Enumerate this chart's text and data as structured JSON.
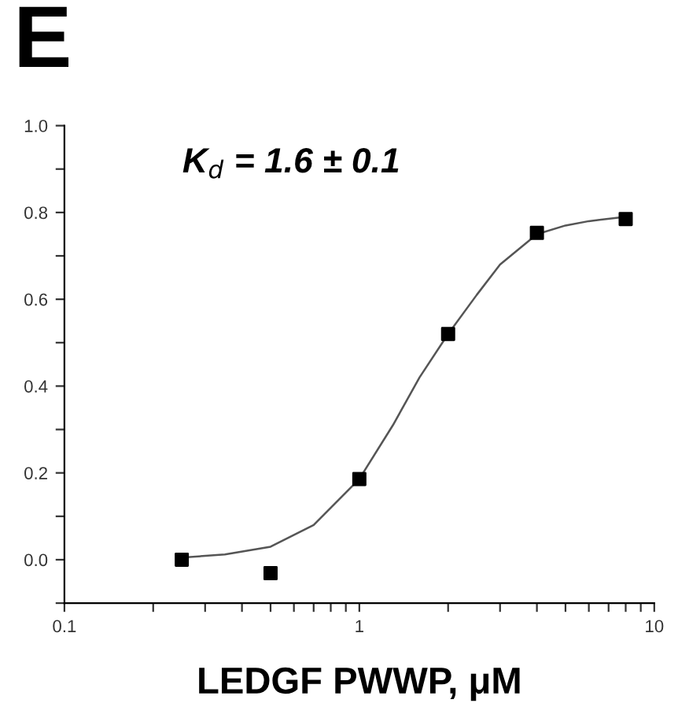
{
  "chart_data": {
    "type": "scatter",
    "xlabel": "LEDGF PWWP, μM",
    "annotations": [
      "E",
      "K$_{d}$ = 1.6 ± 0.1"
    ],
    "log": "x",
    "xlim": [
      0.1,
      10
    ],
    "ylim": [
      -0.1,
      1.0
    ],
    "xticks": [
      0.1,
      {
        "value": 0.2,
        "label": null
      },
      {
        "value": 0.3,
        "label": null
      },
      {
        "value": 0.4,
        "label": null
      },
      {
        "value": 0.5,
        "label": null
      },
      {
        "value": 0.6,
        "label": null
      },
      {
        "value": 0.7,
        "label": null
      },
      {
        "value": 0.8,
        "label": null
      },
      {
        "value": 0.9,
        "label": null
      },
      1,
      {
        "value": 2,
        "label": null
      },
      {
        "value": 3,
        "label": null
      },
      {
        "value": 4,
        "label": null
      },
      {
        "value": 5,
        "label": null
      },
      {
        "value": 6,
        "label": null
      },
      {
        "value": 7,
        "label": null
      },
      {
        "value": 8,
        "label": null
      },
      {
        "value": 9,
        "label": null
      },
      10
    ],
    "yticks": [
      {
        "value": -0.1,
        "label": null
      },
      {
        "value": 0.0,
        "label": "0.0"
      },
      {
        "value": 0.1,
        "label": null
      },
      {
        "value": 0.2,
        "label": "0.2"
      },
      {
        "value": 0.3,
        "label": null
      },
      {
        "value": 0.4,
        "label": "0.4"
      },
      {
        "value": 0.5,
        "label": null
      },
      {
        "value": 0.6,
        "label": "0.6"
      },
      {
        "value": 0.7,
        "label": null
      },
      {
        "value": 0.8,
        "label": "0.8"
      },
      {
        "value": 0.9,
        "label": null
      },
      {
        "value": 1.0,
        "label": "1.0"
      }
    ],
    "grid": false,
    "legend": false,
    "series": [
      {
        "color": "#000000",
        "marker": "square",
        "x": [
          0.25,
          0.5,
          1,
          2,
          4,
          8
        ],
        "values": [
          0.0,
          -0.031,
          0.186,
          0.52,
          0.753,
          0.785
        ]
      },
      {
        "type": "line",
        "color": "#555555",
        "marker": "none",
        "line_style": "solid",
        "x": [
          0.25,
          0.35,
          0.5,
          0.7,
          1,
          1.3,
          1.6,
          2,
          2.5,
          3,
          4,
          5,
          6,
          8
        ],
        "values": [
          0.005,
          0.012,
          0.03,
          0.08,
          0.186,
          0.31,
          0.42,
          0.52,
          0.61,
          0.68,
          0.75,
          0.77,
          0.78,
          0.79
        ]
      }
    ]
  }
}
